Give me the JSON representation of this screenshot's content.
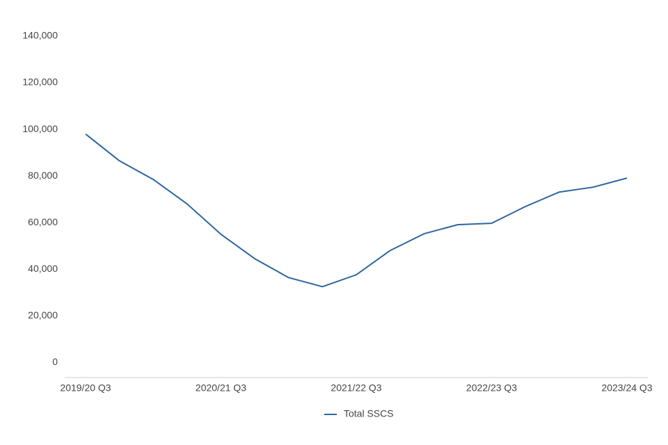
{
  "chart_data": {
    "type": "line",
    "categories": [
      "2019/20 Q3",
      null,
      null,
      null,
      "2020/21 Q3",
      null,
      null,
      null,
      "2021/22 Q3",
      null,
      null,
      null,
      "2022/23 Q3",
      null,
      null,
      null,
      "2023/24 Q3"
    ],
    "series": [
      {
        "name": "Total SSCS",
        "color": "#2b65a0",
        "values": [
          98000,
          86500,
          78500,
          68000,
          55000,
          44500,
          36400,
          32500,
          37600,
          48000,
          55200,
          59100,
          59700,
          66900,
          73100,
          75200,
          79100
        ]
      }
    ],
    "ylim": [
      -6500,
      140000
    ],
    "yticks": [
      0,
      {
        "value": 20000,
        "label": "20,000"
      },
      {
        "value": 40000,
        "label": "40,000"
      },
      {
        "value": 60000,
        "label": "60,000"
      },
      {
        "value": 80000,
        "label": "80,000"
      },
      {
        "value": 100000,
        "label": "100,000"
      },
      {
        "value": 120000,
        "label": "120,000"
      },
      {
        "value": 140000,
        "label": "140,000"
      }
    ],
    "legend": "bottom"
  }
}
